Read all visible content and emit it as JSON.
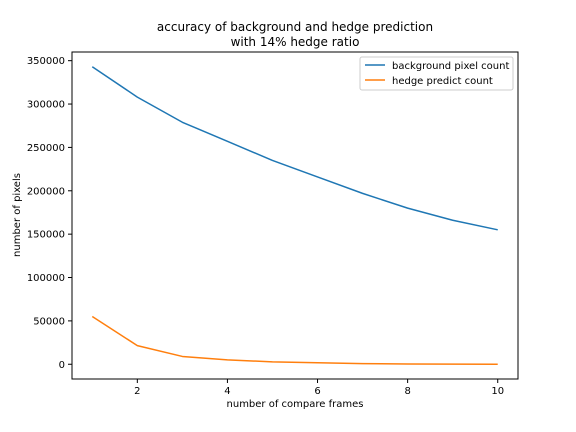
{
  "chart_data": {
    "type": "line",
    "title_lines": [
      "accuracy of background and hedge prediction",
      "with 14% hedge ratio"
    ],
    "xlabel": "number of compare frames",
    "ylabel": "number of pixels",
    "xlim": [
      0.55,
      10.45
    ],
    "ylim": [
      -17000,
      360000
    ],
    "xticks": [
      2,
      4,
      6,
      8,
      10
    ],
    "xtick_labels": [
      "2",
      "4",
      "6",
      "8",
      "10"
    ],
    "yticks": [
      0,
      50000,
      100000,
      150000,
      200000,
      250000,
      300000,
      350000
    ],
    "ytick_labels": [
      "0",
      "50000",
      "100000",
      "150000",
      "200000",
      "250000",
      "300000",
      "350000"
    ],
    "grid": false,
    "legend_position": "upper-right",
    "x": [
      1,
      2,
      3,
      4,
      5,
      6,
      7,
      8,
      9,
      10
    ],
    "series": [
      {
        "name": "background pixel count",
        "color": "#1f77b4",
        "values": [
          343000,
          308000,
          279000,
          257000,
          235000,
          216000,
          197000,
          180000,
          166000,
          155000
        ]
      },
      {
        "name": "hedge predict count",
        "color": "#ff7f0e",
        "values": [
          55000,
          21500,
          9000,
          5000,
          2800,
          1800,
          700,
          300,
          100,
          0
        ]
      }
    ]
  }
}
